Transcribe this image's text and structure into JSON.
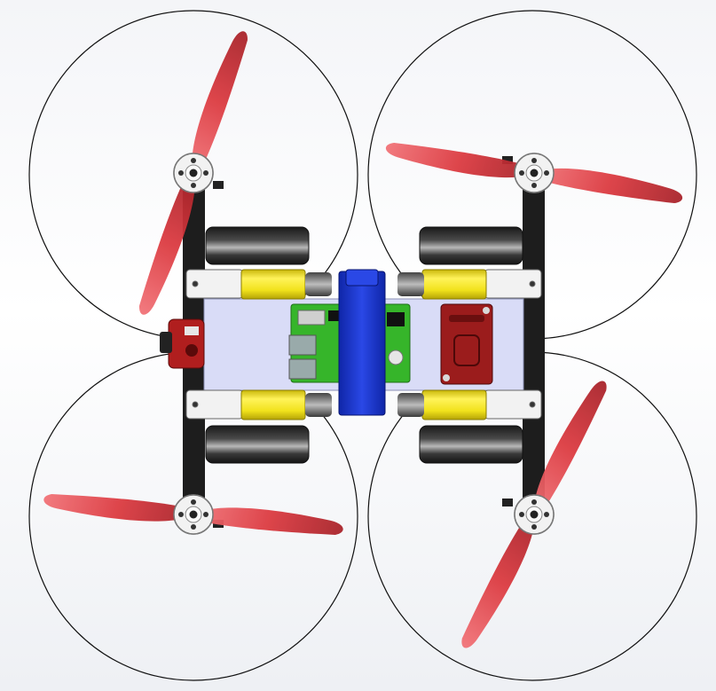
{
  "scene": {
    "subject": "quadcopter-rover-top-view",
    "rotor_count": 4,
    "wheel_count": 4,
    "gear_motor_count": 4
  },
  "colors": {
    "background_top": "#f4f5f8",
    "propeller": "#d83a40",
    "propeller_dark": "#a8262c",
    "propeller_light": "#f06a70",
    "arm": "#1d1d1d",
    "chassis_plate": "#d9dcf7",
    "gear_motor": "#f1e21c",
    "wheel": "#2a2a2a",
    "battery_housing": "#1a35c9",
    "pcb_green": "#36b52a",
    "driver_board_red": "#9b1c1c",
    "camera_housing": "#b01e1e",
    "motor_mount": "#f0f0f0",
    "guard_circle": "#111111"
  },
  "icons": {
    "rotor_mount": "motor-mount-icon",
    "camera": "camera-icon"
  }
}
